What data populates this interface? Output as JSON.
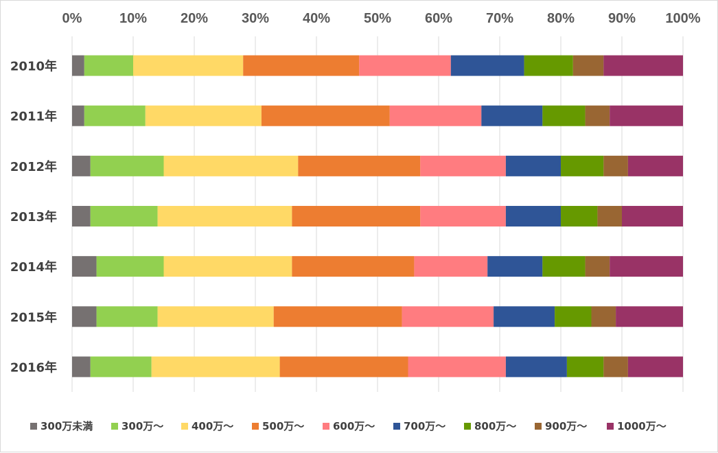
{
  "chart_data": {
    "type": "bar",
    "orientation": "horizontal",
    "stacked": "percent",
    "categories": [
      "2010年",
      "2011年",
      "2012年",
      "2013年",
      "2014年",
      "2015年",
      "2016年"
    ],
    "xlim": [
      0,
      100
    ],
    "x_ticks": [
      "0%",
      "10%",
      "20%",
      "30%",
      "40%",
      "50%",
      "60%",
      "70%",
      "80%",
      "90%",
      "100%"
    ],
    "grid": true,
    "legend_position": "bottom",
    "series": [
      {
        "name": "300万未満",
        "color": "#767171",
        "values": [
          2,
          2,
          3,
          3,
          4,
          4,
          3
        ]
      },
      {
        "name": "300万～",
        "color": "#92d050",
        "values": [
          8,
          10,
          12,
          11,
          11,
          10,
          10
        ]
      },
      {
        "name": "400万～",
        "color": "#ffd966",
        "values": [
          18,
          19,
          22,
          22,
          21,
          19,
          21
        ]
      },
      {
        "name": "500万～",
        "color": "#ed7d31",
        "values": [
          19,
          21,
          20,
          21,
          20,
          21,
          21
        ]
      },
      {
        "name": "600万～",
        "color": "#ff7c80",
        "values": [
          15,
          15,
          14,
          14,
          12,
          15,
          16
        ]
      },
      {
        "name": "700万～",
        "color": "#2f5597",
        "values": [
          12,
          10,
          9,
          9,
          9,
          10,
          10
        ]
      },
      {
        "name": "800万～",
        "color": "#669900",
        "values": [
          8,
          7,
          7,
          6,
          7,
          6,
          6
        ]
      },
      {
        "name": "900万～",
        "color": "#996633",
        "values": [
          5,
          4,
          4,
          4,
          4,
          4,
          4
        ]
      },
      {
        "name": "1000万～",
        "color": "#993366",
        "values": [
          13,
          12,
          9,
          10,
          12,
          11,
          9
        ]
      }
    ]
  }
}
